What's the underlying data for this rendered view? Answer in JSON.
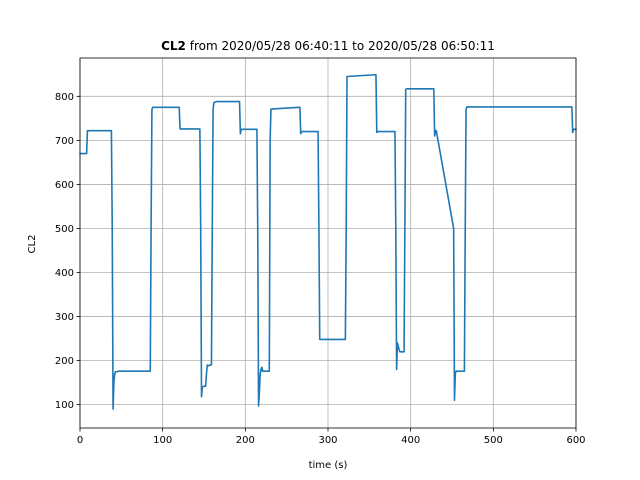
{
  "chart_data": {
    "type": "line",
    "title_bold": "CL2",
    "title_rest": " from 2020/05/28 06:40:11 to 2020/05/28 06:50:11",
    "xlabel": "time (s)",
    "ylabel": "CL2",
    "xlim": [
      0,
      600
    ],
    "ylim": [
      47,
      887
    ],
    "xticks": [
      0,
      100,
      200,
      300,
      400,
      500,
      600
    ],
    "yticks": [
      100,
      200,
      300,
      400,
      500,
      600,
      700,
      800
    ],
    "grid": true,
    "line_color": "#1f77b4",
    "series": [
      {
        "x": [
          0,
          8,
          9,
          38,
          39,
          40,
          41,
          42,
          43,
          45,
          47,
          85,
          86,
          87,
          88,
          120,
          121,
          122,
          123,
          145,
          146,
          147,
          148,
          150,
          152,
          153,
          154,
          155,
          157,
          159,
          160,
          161,
          162,
          165,
          193,
          194,
          195,
          197,
          214,
          215,
          216,
          217,
          218,
          219,
          220,
          221,
          222,
          229,
          230,
          231,
          265,
          266,
          267,
          268,
          288,
          289,
          290,
          320,
          321,
          322,
          323,
          357,
          358,
          359,
          360,
          380,
          381,
          382,
          383,
          384,
          386,
          387,
          388,
          392,
          393,
          394,
          395,
          428,
          429,
          430,
          431,
          452,
          453,
          454,
          455,
          457,
          465,
          466,
          467,
          468,
          470,
          595,
          596,
          597,
          600
        ],
        "y": [
          670,
          670,
          722,
          722,
          500,
          90,
          150,
          170,
          175,
          175,
          176,
          176,
          500,
          770,
          775,
          775,
          726,
          726,
          726,
          726,
          500,
          118,
          140,
          142,
          142,
          170,
          190,
          188,
          190,
          190,
          500,
          770,
          786,
          788,
          788,
          715,
          725,
          725,
          725,
          500,
          97,
          130,
          170,
          180,
          185,
          176,
          176,
          176,
          700,
          771,
          775,
          775,
          715,
          720,
          720,
          500,
          248,
          248,
          248,
          500,
          845,
          849,
          849,
          718,
          720,
          720,
          720,
          500,
          180,
          240,
          225,
          220,
          220,
          220,
          500,
          815,
          817,
          817,
          710,
          722,
          722,
          500,
          110,
          170,
          176,
          176,
          176,
          500,
          770,
          776,
          776,
          776,
          718,
          725,
          725
        ]
      }
    ]
  }
}
